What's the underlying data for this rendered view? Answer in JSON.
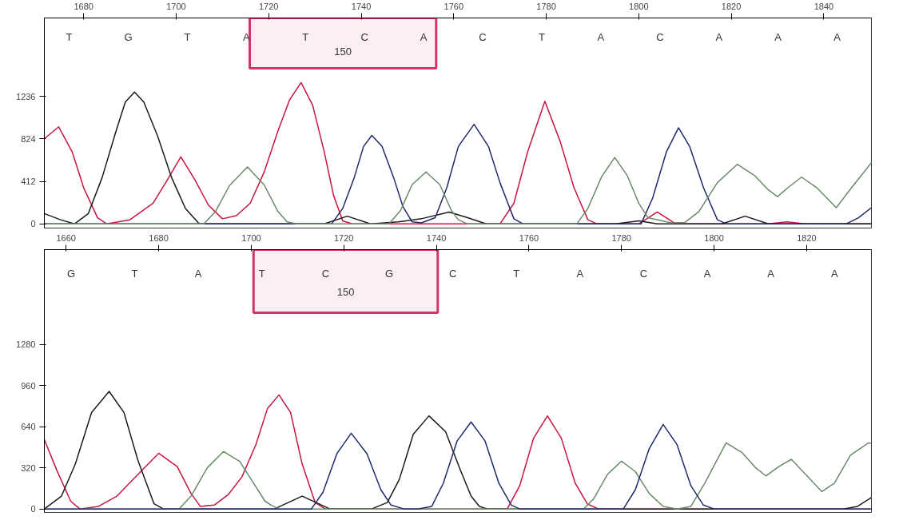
{
  "chart_data": [
    {
      "type": "line",
      "xlim": [
        1671.5,
        1850.3
      ],
      "ylim": [
        -40,
        1994
      ],
      "xticks": [
        1680,
        1700,
        1720,
        1740,
        1760,
        1780,
        1800,
        1820,
        1840
      ],
      "yticks": [
        0,
        412,
        824,
        1236
      ],
      "line_style": "solid",
      "series": [
        {
          "color": "#c8143f",
          "x": [
            1671.5,
            1674.6,
            1677.5,
            1680,
            1683,
            1685,
            1690,
            1695,
            1698,
            1701,
            1704,
            1707,
            1710,
            1713,
            1716,
            1719,
            1722,
            1724.5,
            1727,
            1729.5,
            1732,
            1734,
            1736,
            1738,
            1770,
            1773,
            1776,
            1779.7,
            1783,
            1786,
            1789,
            1791,
            1800,
            1804,
            1808,
            1828,
            1832,
            1836,
            1850.3
          ],
          "values": [
            824,
            940,
            700,
            350,
            60,
            0,
            40,
            200,
            420,
            650,
            430,
            180,
            50,
            80,
            200,
            500,
            900,
            1200,
            1368,
            1150,
            700,
            280,
            30,
            0,
            0,
            200,
            700,
            1187,
            800,
            350,
            40,
            0,
            0,
            115,
            0,
            0,
            20,
            0,
            0
          ]
        },
        {
          "color": "#1a1a1a",
          "x": [
            1671.5,
            1675,
            1678,
            1681,
            1684,
            1687,
            1689,
            1691,
            1693,
            1696,
            1699,
            1702,
            1705,
            1732,
            1737,
            1742,
            1748,
            1753,
            1759,
            1763,
            1767,
            1795,
            1800,
            1804,
            1818,
            1823,
            1828,
            1850.3
          ],
          "values": [
            100,
            40,
            0,
            100,
            450,
            900,
            1180,
            1277,
            1180,
            850,
            450,
            150,
            0,
            0,
            75,
            0,
            20,
            50,
            115,
            60,
            0,
            0,
            30,
            0,
            0,
            75,
            0,
            0
          ]
        },
        {
          "color": "#1f2a6e",
          "x": [
            1671.5,
            1733.6,
            1736,
            1738.5,
            1740.5,
            1742.3,
            1744.5,
            1747,
            1749,
            1751,
            1753,
            1756,
            1758.5,
            1761,
            1764.4,
            1767.5,
            1770,
            1773,
            1775,
            1800.5,
            1803,
            1806,
            1808.6,
            1811,
            1814,
            1817,
            1819,
            1844.8,
            1847.5,
            1850.3
          ],
          "values": [
            0,
            0,
            150,
            450,
            750,
            857,
            750,
            450,
            170,
            20,
            10,
            60,
            350,
            750,
            964,
            750,
            400,
            50,
            0,
            0,
            250,
            700,
            931,
            750,
            350,
            40,
            0,
            0,
            60,
            157
          ]
        },
        {
          "color": "#6a8a6a",
          "x": [
            1671.5,
            1706,
            1708.5,
            1711.5,
            1715.4,
            1719,
            1722,
            1724,
            1726,
            1746,
            1748.5,
            1751,
            1754,
            1757,
            1759.5,
            1761,
            1763,
            1786.6,
            1789,
            1792,
            1794.8,
            1797.5,
            1800,
            1802,
            1807,
            1810,
            1813,
            1817,
            1821.3,
            1825,
            1828,
            1830,
            1832.5,
            1835.2,
            1838.5,
            1842.7,
            1846,
            1850.3
          ],
          "values": [
            0,
            0,
            120,
            370,
            552,
            380,
            120,
            20,
            0,
            0,
            130,
            380,
            503,
            380,
            130,
            40,
            0,
            0,
            150,
            460,
            643,
            470,
            200,
            60,
            10,
            15,
            120,
            400,
            577,
            470,
            330,
            264,
            360,
            453,
            350,
            157,
            350,
            593
          ]
        }
      ],
      "bands": [
        {
          "axis": "x",
          "from": 1715.9,
          "to": 1756.2,
          "color": "#d6336c"
        }
      ],
      "annotations": [
        "T",
        "G",
        "T",
        "A",
        "T",
        "C",
        "A",
        "C",
        "T",
        "A",
        "C",
        "A",
        "A",
        "A",
        "150"
      ]
    },
    {
      "type": "line",
      "xlim": [
        1655.3,
        1834
      ],
      "ylim": [
        -27,
        2017
      ],
      "xticks": [
        1660,
        1680,
        1700,
        1720,
        1740,
        1760,
        1780,
        1800,
        1820
      ],
      "yticks": [
        0,
        320,
        640,
        960,
        1280
      ],
      "line_style": "solid",
      "series": [
        {
          "color": "#c8143f",
          "x": [
            1655.3,
            1658,
            1661,
            1663,
            1667,
            1671,
            1675,
            1680,
            1684,
            1687,
            1689,
            1692,
            1695,
            1698,
            1701,
            1703.5,
            1706,
            1708.5,
            1711,
            1713.8,
            1716,
            1755.3,
            1758,
            1761,
            1764,
            1767,
            1770,
            1772.6,
            1775,
            1834
          ],
          "values": [
            540,
            300,
            60,
            0,
            20,
            100,
            250,
            433,
            330,
            120,
            20,
            30,
            110,
            250,
            500,
            780,
            887,
            750,
            350,
            50,
            0,
            0,
            180,
            550,
            724,
            550,
            200,
            40,
            0,
            0
          ]
        },
        {
          "color": "#1a1a1a",
          "x": [
            1655.3,
            1659,
            1662,
            1665.5,
            1669.3,
            1672.5,
            1675.5,
            1679,
            1681,
            1705,
            1708,
            1711,
            1714,
            1717,
            1726,
            1729.4,
            1732,
            1735,
            1738.4,
            1742,
            1745,
            1747.5,
            1749.3,
            1751,
            1828,
            1831,
            1834
          ],
          "values": [
            0,
            100,
            350,
            750,
            914,
            750,
            380,
            40,
            0,
            0,
            50,
            100,
            50,
            0,
            0,
            50,
            230,
            580,
            724,
            600,
            320,
            100,
            20,
            0,
            0,
            20,
            88
          ]
        },
        {
          "color": "#6a8a6a",
          "x": [
            1655.3,
            1684.4,
            1687,
            1690.5,
            1694,
            1697.5,
            1700.5,
            1703,
            1704.3,
            1706,
            1771.8,
            1774,
            1777,
            1780,
            1783,
            1786,
            1789,
            1792,
            1795,
            1798,
            1802.6,
            1806,
            1809,
            1811.2,
            1814,
            1816.7,
            1820,
            1823.3,
            1826,
            1829.5,
            1833.4,
            1834
          ],
          "values": [
            0,
            0,
            100,
            320,
            447,
            370,
            200,
            60,
            30,
            0,
            0,
            80,
            270,
            372,
            290,
            120,
            20,
            0,
            20,
            200,
            514,
            440,
            320,
            257,
            330,
            386,
            260,
            135,
            200,
            420,
            514,
            510
          ]
        },
        {
          "color": "#1f2a6e",
          "x": [
            1655.3,
            1713,
            1715.5,
            1718.5,
            1721.6,
            1725,
            1728,
            1730.2,
            1733,
            1736,
            1739,
            1741.5,
            1744.5,
            1747.5,
            1750.5,
            1753.5,
            1756.2,
            1758,
            1780.4,
            1783,
            1786,
            1789,
            1792,
            1795,
            1797.7,
            1800,
            1834
          ],
          "values": [
            0,
            0,
            130,
            430,
            589,
            430,
            150,
            30,
            0,
            0,
            20,
            200,
            530,
            677,
            530,
            200,
            30,
            0,
            0,
            150,
            470,
            657,
            500,
            180,
            30,
            0,
            0
          ]
        }
      ],
      "bands": [
        {
          "axis": "x",
          "from": 1700.5,
          "to": 1740.3,
          "color": "#d6336c"
        }
      ],
      "annotations": [
        "G",
        "T",
        "A",
        "T",
        "C",
        "G",
        "C",
        "T",
        "A",
        "C",
        "A",
        "A",
        "A",
        "150"
      ]
    }
  ]
}
